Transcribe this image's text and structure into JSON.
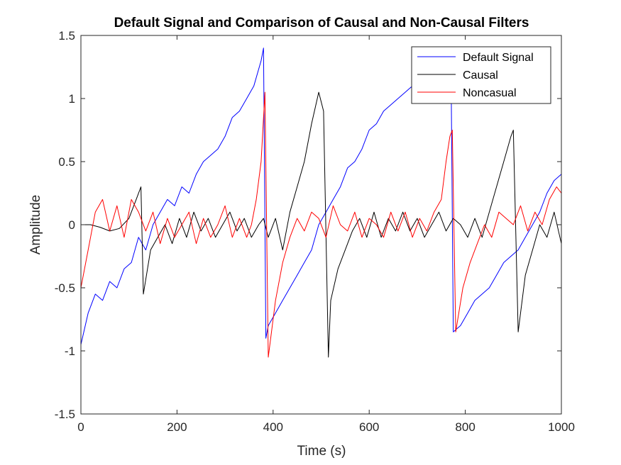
{
  "chart_data": {
    "type": "line",
    "title": "Default Signal and Comparison of Causal and Non-Causal Filters",
    "xlabel": "Time (s)",
    "ylabel": "Amplitude",
    "xlim": [
      0,
      1000
    ],
    "ylim": [
      -1.5,
      1.5
    ],
    "xticks": [
      0,
      200,
      400,
      600,
      800,
      1000
    ],
    "xtick_labels": [
      "0",
      "200",
      "400",
      "600",
      "800",
      "1000"
    ],
    "yticks": [
      -1.5,
      -1,
      -0.5,
      0,
      0.5,
      1,
      1.5
    ],
    "ytick_labels": [
      "-1.5",
      "-1",
      "-0.5",
      "0",
      "0.5",
      "1",
      "1.5"
    ],
    "grid": false,
    "legend_position": "top-right",
    "series": [
      {
        "name": "Default Signal",
        "color": "#0000ff",
        "x": [
          0,
          15,
          30,
          45,
          60,
          75,
          90,
          105,
          120,
          135,
          150,
          165,
          180,
          195,
          210,
          225,
          240,
          255,
          270,
          285,
          300,
          315,
          330,
          345,
          360,
          375,
          380,
          385,
          390,
          405,
          420,
          435,
          450,
          465,
          480,
          495,
          510,
          525,
          540,
          555,
          570,
          585,
          600,
          615,
          630,
          645,
          660,
          675,
          690,
          705,
          720,
          735,
          750,
          765,
          770,
          775,
          790,
          805,
          820,
          835,
          850,
          865,
          880,
          895,
          910,
          925,
          940,
          955,
          970,
          985,
          1000
        ],
        "y": [
          -0.95,
          -0.7,
          -0.55,
          -0.6,
          -0.45,
          -0.5,
          -0.35,
          -0.3,
          -0.1,
          -0.2,
          0.0,
          0.1,
          0.2,
          0.15,
          0.3,
          0.25,
          0.4,
          0.5,
          0.55,
          0.6,
          0.7,
          0.85,
          0.9,
          1.0,
          1.1,
          1.3,
          1.4,
          -0.9,
          -0.8,
          -0.7,
          -0.6,
          -0.5,
          -0.4,
          -0.3,
          -0.2,
          0.0,
          0.1,
          0.2,
          0.3,
          0.45,
          0.5,
          0.6,
          0.75,
          0.8,
          0.9,
          0.95,
          1.0,
          1.05,
          1.1,
          1.15,
          1.2,
          1.25,
          1.3,
          1.35,
          1.4,
          -0.85,
          -0.8,
          -0.7,
          -0.6,
          -0.55,
          -0.5,
          -0.4,
          -0.3,
          -0.25,
          -0.2,
          -0.1,
          0.0,
          0.1,
          0.25,
          0.35,
          0.4
        ]
      },
      {
        "name": "Causal",
        "color": "#000000",
        "x": [
          0,
          20,
          40,
          60,
          80,
          100,
          115,
          125,
          130,
          145,
          160,
          175,
          190,
          205,
          220,
          235,
          250,
          265,
          280,
          295,
          310,
          325,
          340,
          355,
          370,
          380,
          390,
          405,
          420,
          435,
          450,
          465,
          480,
          495,
          505,
          515,
          520,
          535,
          550,
          565,
          580,
          595,
          610,
          625,
          640,
          655,
          670,
          685,
          700,
          715,
          730,
          745,
          760,
          775,
          790,
          805,
          820,
          835,
          850,
          865,
          880,
          895,
          900,
          910,
          925,
          940,
          955,
          970,
          985,
          1000
        ],
        "y": [
          0.0,
          0.0,
          -0.02,
          -0.05,
          -0.03,
          0.05,
          0.2,
          0.3,
          -0.55,
          -0.2,
          -0.1,
          0.0,
          -0.15,
          0.05,
          -0.1,
          0.1,
          -0.05,
          0.05,
          -0.1,
          0.0,
          0.1,
          -0.05,
          0.05,
          -0.1,
          0.0,
          0.05,
          -0.1,
          0.05,
          -0.2,
          0.1,
          0.3,
          0.5,
          0.8,
          1.05,
          0.9,
          -1.05,
          -0.6,
          -0.35,
          -0.2,
          -0.05,
          0.05,
          -0.1,
          0.1,
          -0.1,
          0.05,
          -0.05,
          0.1,
          -0.05,
          0.05,
          -0.1,
          0.0,
          0.1,
          -0.05,
          0.05,
          0.0,
          -0.1,
          0.05,
          -0.1,
          0.1,
          0.3,
          0.5,
          0.7,
          0.75,
          -0.85,
          -0.4,
          -0.2,
          0.0,
          -0.1,
          0.1,
          -0.15
        ]
      },
      {
        "name": "Noncasual",
        "color": "#ff0000",
        "x": [
          0,
          15,
          30,
          45,
          60,
          75,
          90,
          105,
          120,
          135,
          150,
          165,
          180,
          195,
          210,
          225,
          240,
          255,
          270,
          285,
          300,
          315,
          330,
          345,
          355,
          365,
          375,
          383,
          390,
          405,
          420,
          435,
          450,
          465,
          480,
          495,
          510,
          525,
          540,
          555,
          570,
          585,
          600,
          615,
          630,
          645,
          660,
          675,
          690,
          705,
          720,
          735,
          750,
          760,
          768,
          773,
          780,
          795,
          810,
          825,
          840,
          855,
          870,
          885,
          900,
          915,
          930,
          945,
          960,
          975,
          990,
          1000
        ],
        "y": [
          -0.5,
          -0.2,
          0.1,
          0.2,
          -0.05,
          0.15,
          -0.1,
          0.2,
          0.1,
          -0.05,
          0.1,
          -0.15,
          0.05,
          -0.1,
          0.0,
          0.1,
          -0.15,
          0.05,
          -0.1,
          0.0,
          0.15,
          -0.1,
          0.05,
          -0.1,
          0.0,
          0.2,
          0.5,
          1.05,
          -1.05,
          -0.6,
          -0.3,
          -0.1,
          0.05,
          -0.05,
          0.1,
          0.05,
          -0.1,
          0.15,
          0.0,
          -0.05,
          0.1,
          -0.1,
          0.05,
          0.0,
          -0.1,
          0.1,
          -0.05,
          0.1,
          -0.1,
          0.05,
          -0.05,
          0.1,
          0.2,
          0.5,
          0.7,
          0.75,
          -0.85,
          -0.5,
          -0.3,
          -0.15,
          0.0,
          -0.1,
          0.1,
          0.05,
          0.0,
          0.15,
          -0.05,
          0.1,
          0.0,
          0.2,
          0.3,
          0.25
        ]
      }
    ]
  }
}
